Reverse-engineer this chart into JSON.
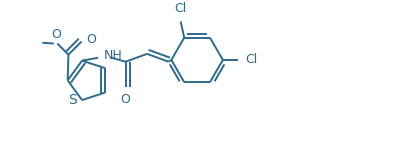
{
  "bg_color": "#ffffff",
  "line_color": "#2d6b8a",
  "text_color": "#2d6b8a",
  "line_width": 1.4,
  "font_size": 8.5,
  "figsize": [
    4.02,
    1.55
  ],
  "dpi": 100,
  "xlim": [
    0.0,
    10.0
  ],
  "ylim": [
    0.0,
    4.0
  ]
}
